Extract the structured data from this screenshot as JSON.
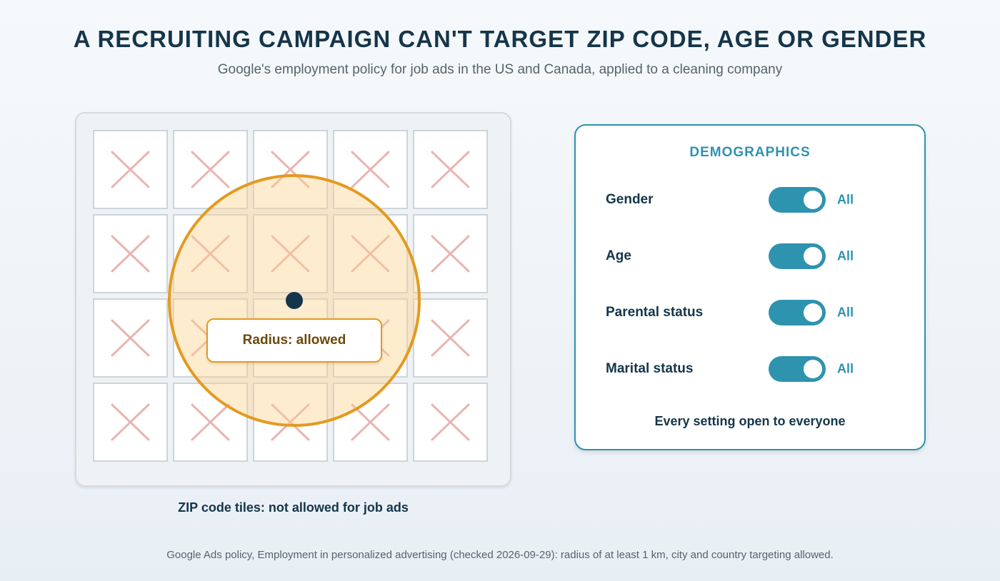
{
  "header": {
    "title": "A RECRUITING CAMPAIGN CAN'T TARGET ZIP CODE, AGE OR GENDER",
    "subtitle": "Google's employment policy for job ads in the US and Canada, applied to a cleaning company"
  },
  "map": {
    "grid_rows": 4,
    "grid_cols": 5,
    "tile_state": "not allowed",
    "tile_icon": "cross-icon",
    "radius_label": "Radius: allowed",
    "caption": "ZIP code tiles: not allowed for job ads"
  },
  "demographics": {
    "title": "DEMOGRAPHICS",
    "rows": [
      {
        "label": "Gender",
        "value": "All",
        "on": true
      },
      {
        "label": "Age",
        "value": "All",
        "on": true
      },
      {
        "label": "Parental status",
        "value": "All",
        "on": true
      },
      {
        "label": "Marital status",
        "value": "All",
        "on": true
      }
    ],
    "footer": "Every setting open to everyone"
  },
  "footnote": "Google Ads policy, Employment in personalized advertising (checked 2026-09-29): radius of at least 1 km, city and country targeting allowed.",
  "colors": {
    "accent": "#2e93ae",
    "radius": "#e39a21",
    "cross": "#e8b5b2",
    "navy": "#15354a"
  }
}
